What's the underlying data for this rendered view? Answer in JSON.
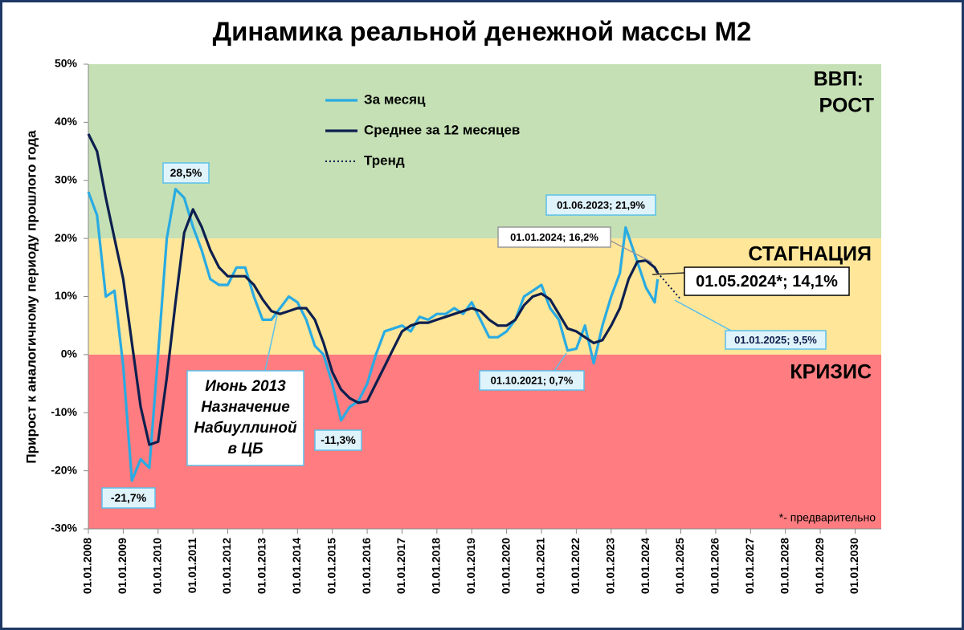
{
  "chart_data": {
    "type": "line",
    "title": "Динамика реальной денежной массы M2",
    "y_label": "Прирост к аналогичному периоду прошлого года",
    "ylim": [
      -30,
      50
    ],
    "yticks": [
      {
        "value": -30,
        "label": "-30%"
      },
      {
        "value": -20,
        "label": "-20%"
      },
      {
        "value": -10,
        "label": "-10%"
      },
      {
        "value": 0,
        "label": "0%"
      },
      {
        "value": 10,
        "label": "10%"
      },
      {
        "value": 20,
        "label": "20%"
      },
      {
        "value": 30,
        "label": "30%"
      },
      {
        "value": 40,
        "label": "40%"
      },
      {
        "value": 50,
        "label": "50%"
      }
    ],
    "xlim": [
      "01.01.2008",
      "01.10.2030"
    ],
    "xticks": [
      "01.01.2008",
      "01.01.2009",
      "01.01.2010",
      "01.01.2011",
      "01.01.2012",
      "01.01.2013",
      "01.01.2014",
      "01.01.2015",
      "01.01.2016",
      "01.01.2017",
      "01.01.2018",
      "01.01.2019",
      "01.01.2020",
      "01.01.2021",
      "01.01.2022",
      "01.01.2023",
      "01.01.2024",
      "01.01.2025",
      "01.01.2026",
      "01.01.2027",
      "01.01.2028",
      "01.01.2029",
      "01.01.2030"
    ],
    "zones": [
      {
        "from": 20,
        "to": 50,
        "color": "#c5e0b4",
        "label": [
          "ВВП:",
          "РОСТ"
        ]
      },
      {
        "from": 0,
        "to": 20,
        "color": "#ffe699",
        "label": [
          "СТАГНАЦИЯ"
        ]
      },
      {
        "from": -30,
        "to": 0,
        "color": "#ff7c80",
        "label": [
          "КРИЗИС"
        ]
      }
    ],
    "series": [
      {
        "name": "За месяц",
        "color": "#29abe2",
        "style": "solid",
        "x": [
          "01.01.2008",
          "01.04.2008",
          "01.07.2008",
          "01.10.2008",
          "01.01.2009",
          "01.04.2009",
          "01.07.2009",
          "01.10.2009",
          "01.01.2010",
          "01.04.2010",
          "01.07.2010",
          "01.10.2010",
          "01.01.2011",
          "01.04.2011",
          "01.07.2011",
          "01.10.2011",
          "01.01.2012",
          "01.04.2012",
          "01.07.2012",
          "01.10.2012",
          "01.01.2013",
          "01.04.2013",
          "01.07.2013",
          "01.10.2013",
          "01.01.2014",
          "01.04.2014",
          "01.07.2014",
          "01.10.2014",
          "01.01.2015",
          "01.04.2015",
          "01.07.2015",
          "01.10.2015",
          "01.01.2016",
          "01.04.2016",
          "01.07.2016",
          "01.10.2016",
          "01.01.2017",
          "01.04.2017",
          "01.07.2017",
          "01.10.2017",
          "01.01.2018",
          "01.04.2018",
          "01.07.2018",
          "01.10.2018",
          "01.01.2019",
          "01.04.2019",
          "01.07.2019",
          "01.10.2019",
          "01.01.2020",
          "01.04.2020",
          "01.07.2020",
          "01.10.2020",
          "01.01.2021",
          "01.04.2021",
          "01.07.2021",
          "01.10.2021",
          "01.01.2022",
          "01.04.2022",
          "01.07.2022",
          "01.10.2022",
          "01.01.2023",
          "01.04.2023",
          "01.06.2023",
          "01.10.2023",
          "01.01.2024",
          "01.04.2024",
          "01.05.2024"
        ],
        "values": [
          28,
          24,
          10,
          11,
          -2,
          -21.7,
          -18,
          -19.5,
          0,
          20,
          28.5,
          27,
          22,
          18,
          13,
          12,
          12,
          15,
          15,
          10,
          6,
          6,
          8,
          10,
          9,
          6,
          1.5,
          0,
          -5,
          -11.3,
          -9,
          -8,
          -5,
          0,
          4,
          4.5,
          5,
          4,
          6.5,
          6,
          7,
          7,
          8,
          7,
          9,
          6,
          3,
          3,
          4,
          6,
          10,
          11,
          12,
          8,
          6,
          0.7,
          1,
          5,
          -1.5,
          5,
          10,
          14,
          21.9,
          16,
          11.5,
          9,
          13
        ]
      },
      {
        "name": "Среднее за 12 месяцев",
        "color": "#0d1f4f",
        "style": "solid",
        "x": [
          "01.01.2008",
          "01.04.2008",
          "01.07.2008",
          "01.10.2008",
          "01.01.2009",
          "01.04.2009",
          "01.07.2009",
          "01.10.2009",
          "01.01.2010",
          "01.04.2010",
          "01.07.2010",
          "01.10.2010",
          "01.01.2011",
          "01.04.2011",
          "01.07.2011",
          "01.10.2011",
          "01.01.2012",
          "01.04.2012",
          "01.07.2012",
          "01.10.2012",
          "01.01.2013",
          "01.04.2013",
          "01.07.2013",
          "01.10.2013",
          "01.01.2014",
          "01.04.2014",
          "01.07.2014",
          "01.10.2014",
          "01.01.2015",
          "01.04.2015",
          "01.07.2015",
          "01.10.2015",
          "01.01.2016",
          "01.04.2016",
          "01.07.2016",
          "01.10.2016",
          "01.01.2017",
          "01.04.2017",
          "01.07.2017",
          "01.10.2017",
          "01.01.2018",
          "01.04.2018",
          "01.07.2018",
          "01.10.2018",
          "01.01.2019",
          "01.04.2019",
          "01.07.2019",
          "01.10.2019",
          "01.01.2020",
          "01.04.2020",
          "01.07.2020",
          "01.10.2020",
          "01.01.2021",
          "01.04.2021",
          "01.07.2021",
          "01.10.2021",
          "01.01.2022",
          "01.04.2022",
          "01.07.2022",
          "01.10.2022",
          "01.01.2023",
          "01.04.2023",
          "01.07.2023",
          "01.10.2023",
          "01.01.2024",
          "01.04.2024",
          "01.05.2024"
        ],
        "values": [
          38,
          35,
          27,
          20,
          13,
          2,
          -9,
          -15.5,
          -15,
          -4,
          9,
          21,
          25,
          22,
          18,
          15,
          13.5,
          13.5,
          13.5,
          12,
          9.5,
          7.5,
          7,
          7.5,
          8,
          8,
          6,
          2,
          -3,
          -6,
          -7.5,
          -8.3,
          -8,
          -5,
          -2,
          1,
          4,
          5,
          5.5,
          5.5,
          6,
          6.5,
          7,
          7.5,
          8,
          7.5,
          6,
          5,
          5,
          6,
          8.5,
          10,
          10.5,
          9.5,
          7,
          4.5,
          4,
          3,
          2,
          2.5,
          5,
          8,
          13,
          16,
          16.2,
          15,
          14.1
        ]
      },
      {
        "name": "Тренд",
        "color": "#0d1f4f",
        "style": "dotted",
        "x": [
          "01.05.2024",
          "01.01.2025"
        ],
        "values": [
          14.1,
          9.5
        ]
      }
    ],
    "annotations": [
      "28,5%",
      "-21,7%",
      "-11,3%",
      "01.06.2023; 21,9%",
      "01.01.2024; 16,2%",
      "01.05.2024*; 14,1%",
      "01.01.2025; 9,5%",
      "01.10.2021; 0,7%",
      [
        "Июнь 2013",
        "Назначение",
        "Набиуллиной",
        "в ЦБ"
      ]
    ],
    "footnote": "*- предварительно"
  }
}
